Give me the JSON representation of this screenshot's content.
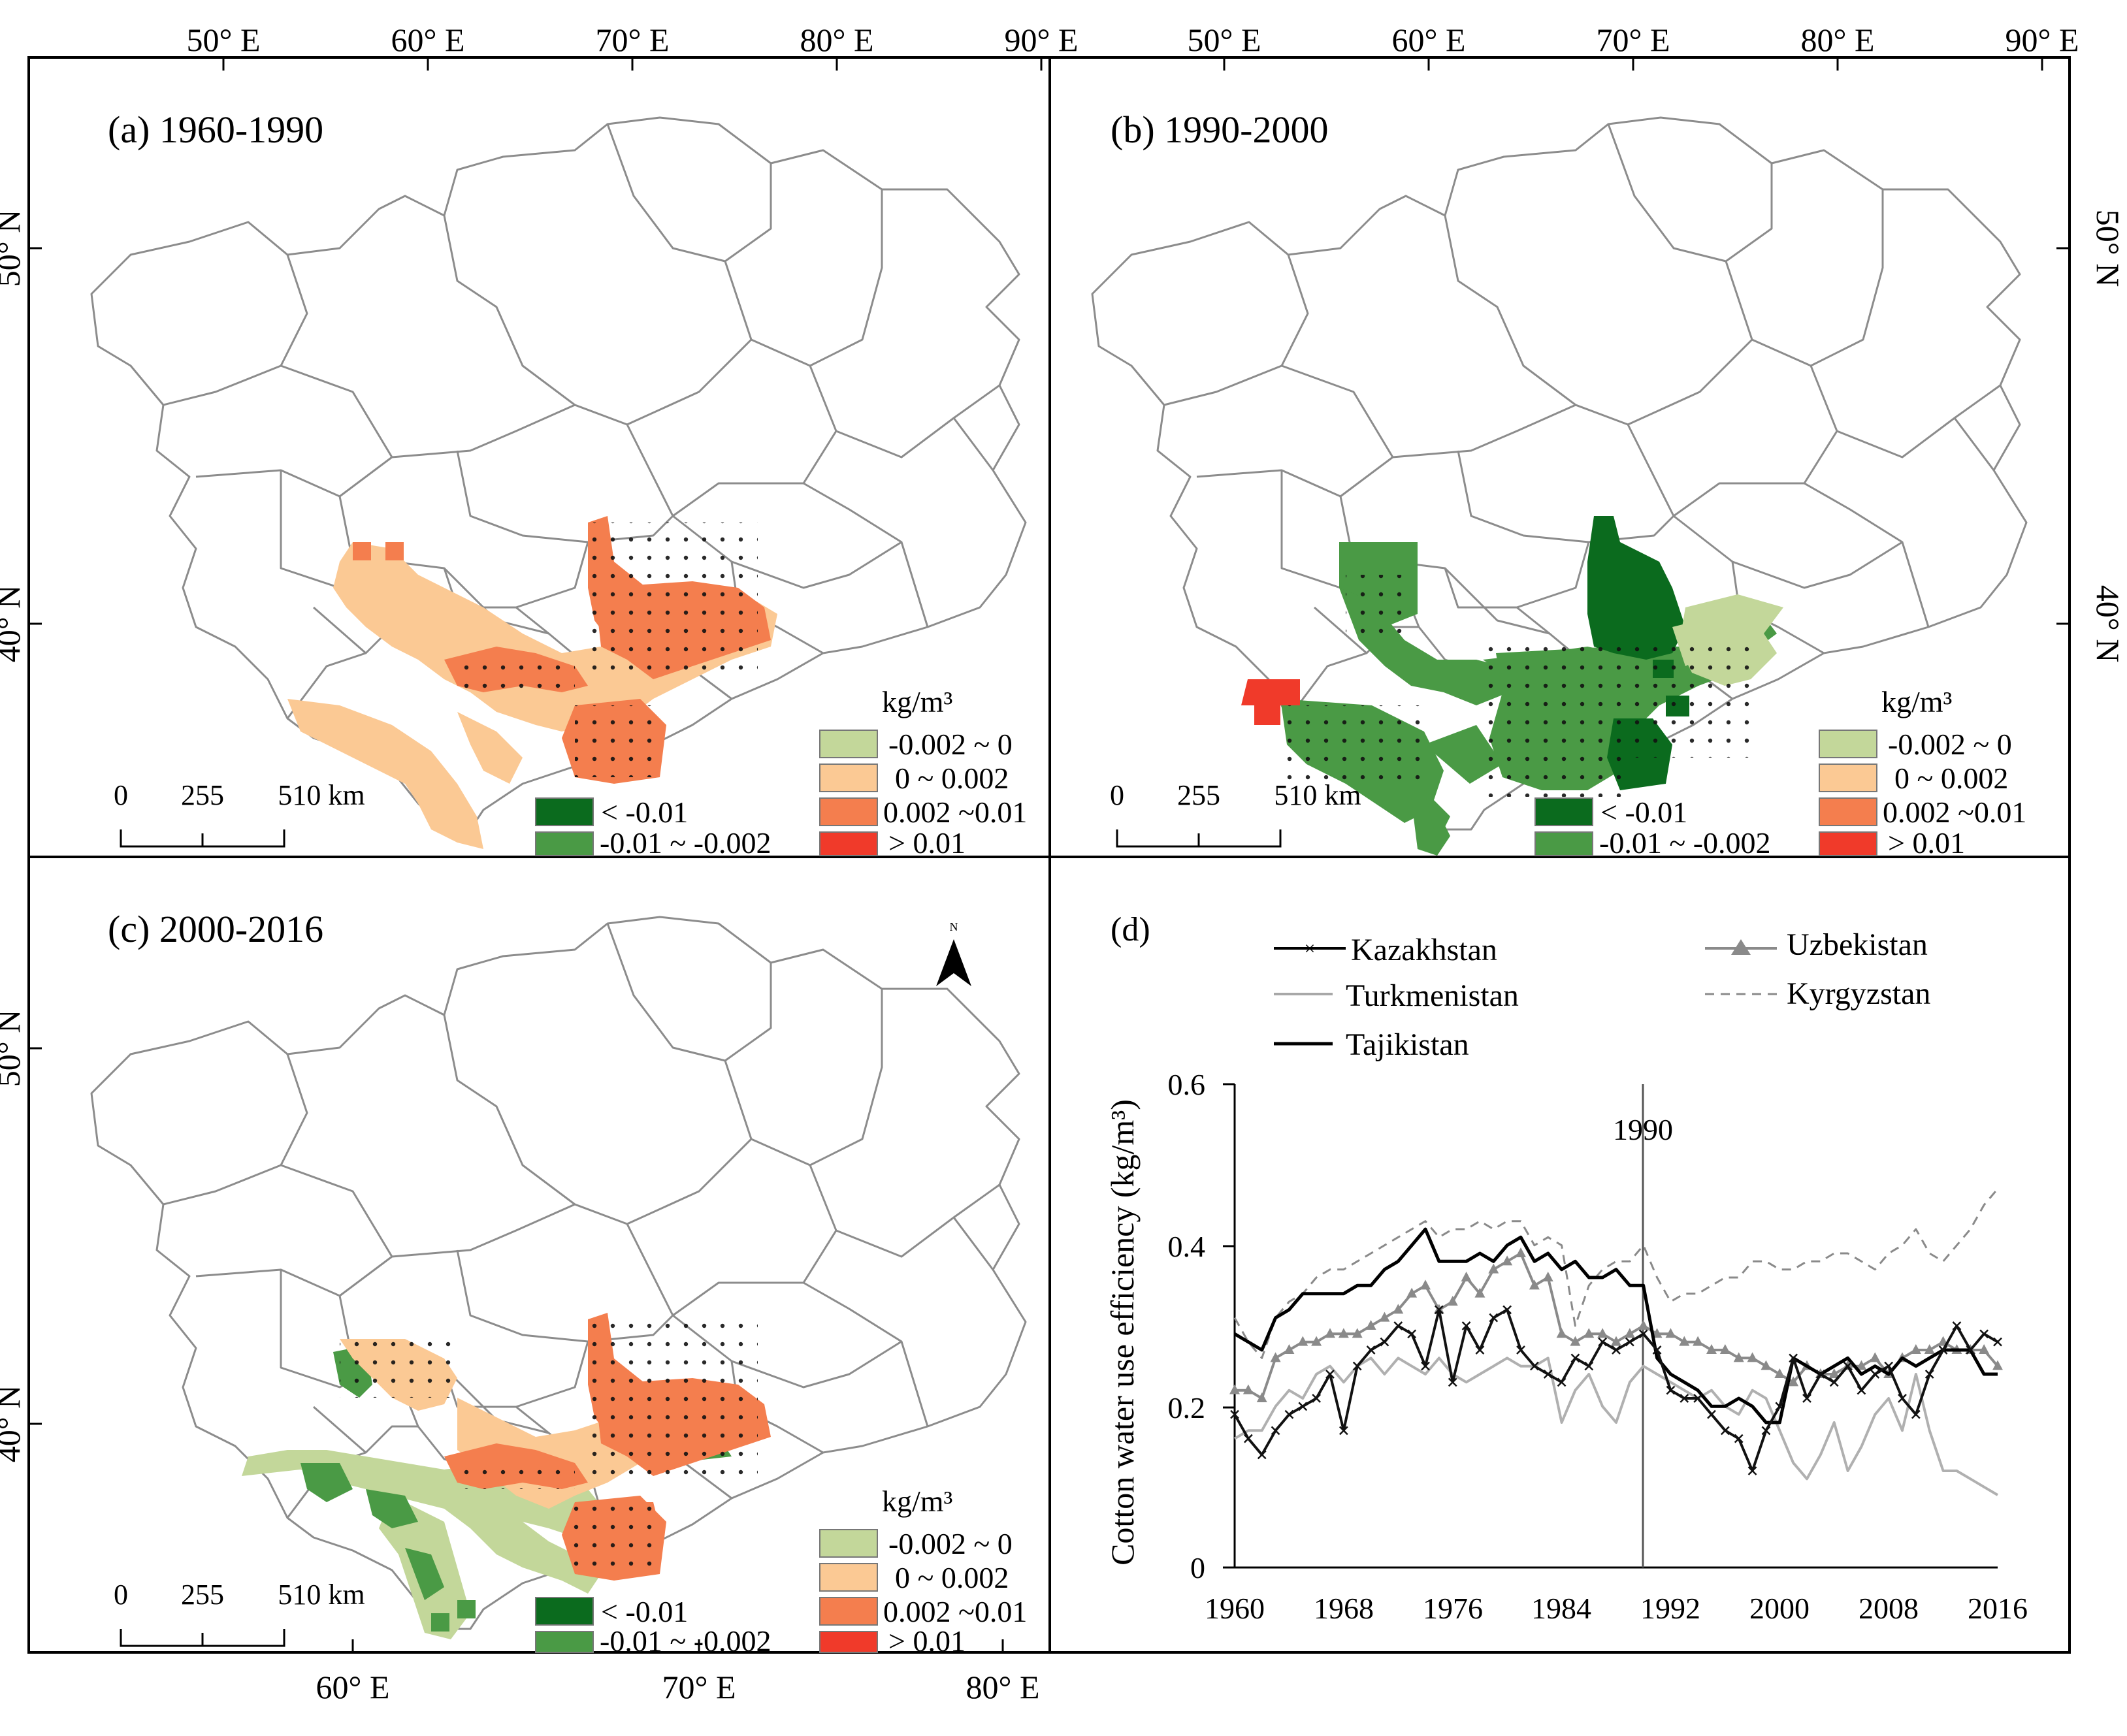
{
  "colors": {
    "dark_green": "#0b6b1e",
    "mid_green": "#4a9a45",
    "light_green": "#c3d79a",
    "light_orange": "#fbc994",
    "orange": "#f47e4e",
    "red": "#f03a2a",
    "boundary": "#8c8c8c",
    "frame": "#000000"
  },
  "top_lon_ticks": [
    "50° E",
    "60° E",
    "70° E",
    "80° E",
    "90° E"
  ],
  "bottom_lon_ticks": [
    "60° E",
    "70° E",
    "80° E"
  ],
  "lat_ticks": [
    "50° N",
    "40° N"
  ],
  "legend": {
    "unit": "kg/m³",
    "items": [
      {
        "label": "-0.002 ~ 0",
        "color": "#c3d79a"
      },
      {
        "label": "0 ~ 0.002",
        "color": "#fbc994"
      },
      {
        "label": "0.002 ~0.01",
        "color": "#f47e4e"
      },
      {
        "label": "> 0.01",
        "color": "#f03a2a"
      },
      {
        "label": "< -0.01",
        "color": "#0b6b1e"
      },
      {
        "label": "-0.01 ~ -0.002",
        "color": "#4a9a45"
      }
    ]
  },
  "scale_bar": {
    "ticks": [
      "0",
      "255",
      "510 km"
    ]
  },
  "north_arrow": "N",
  "panels": [
    {
      "id": "a",
      "title": "(a) 1960-1990"
    },
    {
      "id": "b",
      "title": "(b) 1990-2000"
    },
    {
      "id": "c",
      "title": "(c) 2000-2016"
    }
  ],
  "chart_data": {
    "type": "line",
    "panel_label": "(d)",
    "title": "",
    "xlabel": "",
    "ylabel": "Cotton water use efficiency (kg/m³)",
    "x_ticks": [
      "1960",
      "1968",
      "1976",
      "1984",
      "1992",
      "2000",
      "2008",
      "2016"
    ],
    "y_ticks": [
      "0",
      "0.2",
      "0.4",
      "0.6"
    ],
    "xlim": [
      1960,
      2016
    ],
    "ylim": [
      0,
      0.6
    ],
    "vline": {
      "x": 1990,
      "label": "1990"
    },
    "x": [
      1960,
      1961,
      1962,
      1963,
      1964,
      1965,
      1966,
      1967,
      1968,
      1969,
      1970,
      1971,
      1972,
      1973,
      1974,
      1975,
      1976,
      1977,
      1978,
      1979,
      1980,
      1981,
      1982,
      1983,
      1984,
      1985,
      1986,
      1987,
      1988,
      1989,
      1990,
      1991,
      1992,
      1993,
      1994,
      1995,
      1996,
      1997,
      1998,
      1999,
      2000,
      2001,
      2002,
      2003,
      2004,
      2005,
      2006,
      2007,
      2008,
      2009,
      2010,
      2011,
      2012,
      2013,
      2014,
      2015,
      2016
    ],
    "series": [
      {
        "name": "Kazakhstan",
        "style": "x-marker",
        "values": [
          0.19,
          0.16,
          0.14,
          0.17,
          0.19,
          0.2,
          0.21,
          0.24,
          0.17,
          0.25,
          0.27,
          0.28,
          0.3,
          0.29,
          0.25,
          0.32,
          0.23,
          0.3,
          0.27,
          0.31,
          0.32,
          0.27,
          0.25,
          0.24,
          0.23,
          0.26,
          0.25,
          0.28,
          0.27,
          0.28,
          0.29,
          0.27,
          0.22,
          0.21,
          0.21,
          0.19,
          0.17,
          0.16,
          0.12,
          0.17,
          0.2,
          0.26,
          0.21,
          0.24,
          0.23,
          0.25,
          0.22,
          0.24,
          0.25,
          0.21,
          0.19,
          0.24,
          0.27,
          0.3,
          0.27,
          0.29,
          0.28
        ]
      },
      {
        "name": "Turkmenistan",
        "style": "gray-solid",
        "values": [
          0.16,
          0.17,
          0.17,
          0.2,
          0.22,
          0.21,
          0.24,
          0.25,
          0.23,
          0.25,
          0.26,
          0.24,
          0.26,
          0.25,
          0.24,
          0.26,
          0.24,
          0.23,
          0.24,
          0.25,
          0.26,
          0.25,
          0.25,
          0.26,
          0.18,
          0.22,
          0.24,
          0.2,
          0.18,
          0.23,
          0.25,
          0.24,
          0.23,
          0.22,
          0.21,
          0.22,
          0.2,
          0.19,
          0.22,
          0.21,
          0.17,
          0.13,
          0.11,
          0.14,
          0.18,
          0.12,
          0.15,
          0.19,
          0.21,
          0.17,
          0.24,
          0.17,
          0.12,
          0.12,
          0.11,
          0.1,
          0.09
        ]
      },
      {
        "name": "Tajikistan",
        "style": "black-solid",
        "values": [
          0.29,
          0.28,
          0.27,
          0.31,
          0.32,
          0.34,
          0.34,
          0.34,
          0.34,
          0.35,
          0.35,
          0.37,
          0.38,
          0.4,
          0.42,
          0.38,
          0.38,
          0.38,
          0.39,
          0.38,
          0.4,
          0.41,
          0.38,
          0.39,
          0.37,
          0.38,
          0.36,
          0.36,
          0.37,
          0.35,
          0.35,
          0.26,
          0.24,
          0.23,
          0.22,
          0.2,
          0.2,
          0.21,
          0.2,
          0.18,
          0.18,
          0.26,
          0.25,
          0.24,
          0.25,
          0.26,
          0.24,
          0.25,
          0.24,
          0.26,
          0.25,
          0.26,
          0.27,
          0.27,
          0.27,
          0.24,
          0.24
        ]
      },
      {
        "name": "Uzbekistan",
        "style": "triangle-marker",
        "values": [
          0.22,
          0.22,
          0.21,
          0.26,
          0.27,
          0.28,
          0.28,
          0.29,
          0.29,
          0.29,
          0.3,
          0.31,
          0.32,
          0.34,
          0.35,
          0.32,
          0.33,
          0.36,
          0.34,
          0.37,
          0.38,
          0.39,
          0.35,
          0.36,
          0.29,
          0.28,
          0.29,
          0.29,
          0.28,
          0.29,
          0.3,
          0.29,
          0.29,
          0.28,
          0.28,
          0.27,
          0.27,
          0.26,
          0.26,
          0.25,
          0.24,
          0.23,
          0.25,
          0.24,
          0.24,
          0.25,
          0.25,
          0.26,
          0.24,
          0.26,
          0.27,
          0.27,
          0.28,
          0.27,
          0.27,
          0.27,
          0.25
        ]
      },
      {
        "name": "Kyrgyzstan",
        "style": "gray-dashed",
        "values": [
          0.31,
          0.28,
          0.26,
          0.31,
          0.33,
          0.34,
          0.36,
          0.37,
          0.37,
          0.38,
          0.39,
          0.4,
          0.41,
          0.42,
          0.43,
          0.41,
          0.42,
          0.42,
          0.43,
          0.42,
          0.43,
          0.43,
          0.4,
          0.41,
          0.4,
          0.3,
          0.35,
          0.37,
          0.38,
          0.38,
          0.4,
          0.36,
          0.33,
          0.34,
          0.34,
          0.35,
          0.36,
          0.36,
          0.38,
          0.38,
          0.37,
          0.37,
          0.38,
          0.38,
          0.39,
          0.39,
          0.38,
          0.37,
          0.39,
          0.4,
          0.42,
          0.39,
          0.38,
          0.4,
          0.42,
          0.45,
          0.47
        ]
      }
    ]
  }
}
